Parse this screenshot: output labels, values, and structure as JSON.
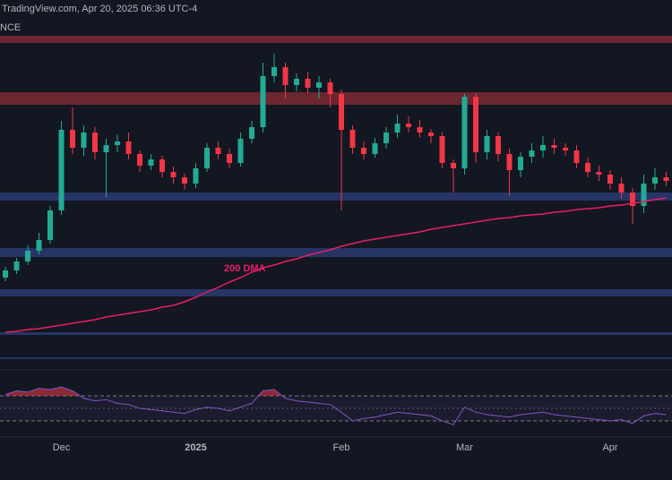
{
  "header": {
    "source": "TradingView.com, Apr 20, 2025 06:36 UTC-4",
    "exchange": "NCE"
  },
  "chart_data": {
    "type": "candlestick",
    "categories": [
      null,
      null,
      null,
      null,
      null,
      "Dec",
      null,
      null,
      null,
      null,
      null,
      null,
      null,
      null,
      null,
      null,
      null,
      "2025",
      null,
      null,
      null,
      null,
      null,
      null,
      null,
      null,
      null,
      null,
      null,
      null,
      "Feb",
      null,
      null,
      null,
      null,
      null,
      null,
      null,
      null,
      null,
      null,
      "Mar",
      null,
      null,
      null,
      null,
      null,
      null,
      null,
      null,
      null,
      null,
      null,
      null,
      "Apr",
      null,
      null,
      null,
      null,
      null
    ],
    "open": [
      100,
      108,
      118,
      130,
      142,
      175,
      265,
      245,
      262,
      240,
      248,
      252,
      238,
      225,
      232,
      218,
      212,
      205,
      222,
      245,
      238,
      228,
      255,
      268,
      325,
      335,
      315,
      322,
      312,
      318,
      305,
      265,
      245,
      238,
      250,
      262,
      272,
      268,
      262,
      258,
      228,
      222,
      302,
      240,
      258,
      238,
      220,
      235,
      242,
      248,
      245,
      242,
      228,
      218,
      215,
      205,
      195,
      180,
      205,
      212
    ],
    "high": [
      112,
      122,
      136,
      150,
      180,
      275,
      290,
      270,
      268,
      255,
      260,
      262,
      242,
      238,
      236,
      224,
      216,
      228,
      250,
      252,
      244,
      262,
      275,
      340,
      350,
      340,
      328,
      330,
      325,
      322,
      310,
      270,
      252,
      256,
      268,
      282,
      280,
      276,
      266,
      262,
      232,
      305,
      306,
      265,
      262,
      244,
      240,
      250,
      258,
      255,
      250,
      248,
      234,
      225,
      220,
      212,
      200,
      215,
      222,
      218
    ],
    "low": [
      96,
      104,
      114,
      126,
      138,
      170,
      238,
      236,
      232,
      190,
      240,
      232,
      218,
      220,
      212,
      205,
      198,
      200,
      218,
      232,
      222,
      224,
      250,
      262,
      318,
      300,
      308,
      306,
      300,
      290,
      175,
      238,
      232,
      234,
      244,
      256,
      262,
      256,
      250,
      222,
      195,
      215,
      228,
      232,
      230,
      192,
      212,
      228,
      234,
      238,
      236,
      222,
      212,
      208,
      198,
      188,
      160,
      172,
      198,
      202
    ],
    "close": [
      108,
      118,
      130,
      142,
      175,
      265,
      245,
      262,
      240,
      248,
      252,
      238,
      225,
      232,
      218,
      212,
      205,
      222,
      245,
      238,
      228,
      255,
      268,
      325,
      335,
      315,
      322,
      312,
      318,
      305,
      265,
      245,
      238,
      250,
      262,
      272,
      268,
      262,
      258,
      228,
      222,
      302,
      240,
      258,
      238,
      220,
      235,
      242,
      248,
      245,
      242,
      228,
      218,
      215,
      205,
      195,
      180,
      205,
      212,
      208
    ],
    "ylim": [
      0,
      370
    ],
    "up_color": "#22ab94",
    "down_color": "#f23645",
    "dma": {
      "name": "200 DMA",
      "color": "#e91e63",
      "values": [
        39,
        40,
        42,
        43,
        45,
        47,
        49,
        51,
        53,
        56,
        58,
        60,
        62,
        64,
        67,
        69,
        73,
        78,
        84,
        89,
        95,
        100,
        106,
        111,
        114,
        118,
        121,
        125,
        128,
        131,
        135,
        138,
        141,
        143,
        145,
        147,
        149,
        151,
        154,
        156,
        158,
        160,
        162,
        164,
        166,
        167,
        169,
        170,
        171,
        173,
        174,
        176,
        177,
        178,
        180,
        181,
        183,
        185,
        187,
        189
      ]
    },
    "rsi": {
      "color": "#7e57c2",
      "ylim": [
        0,
        100
      ],
      "values": [
        72,
        78,
        76,
        82,
        80,
        84,
        78,
        66,
        62,
        64,
        58,
        56,
        50,
        48,
        46,
        44,
        42,
        48,
        52,
        50,
        46,
        52,
        58,
        78,
        80,
        66,
        62,
        60,
        58,
        56,
        44,
        30,
        34,
        36,
        40,
        44,
        42,
        40,
        38,
        30,
        24,
        52,
        44,
        40,
        38,
        36,
        40,
        42,
        44,
        40,
        38,
        36,
        34,
        32,
        30,
        32,
        26,
        38,
        42,
        40
      ]
    }
  }
}
